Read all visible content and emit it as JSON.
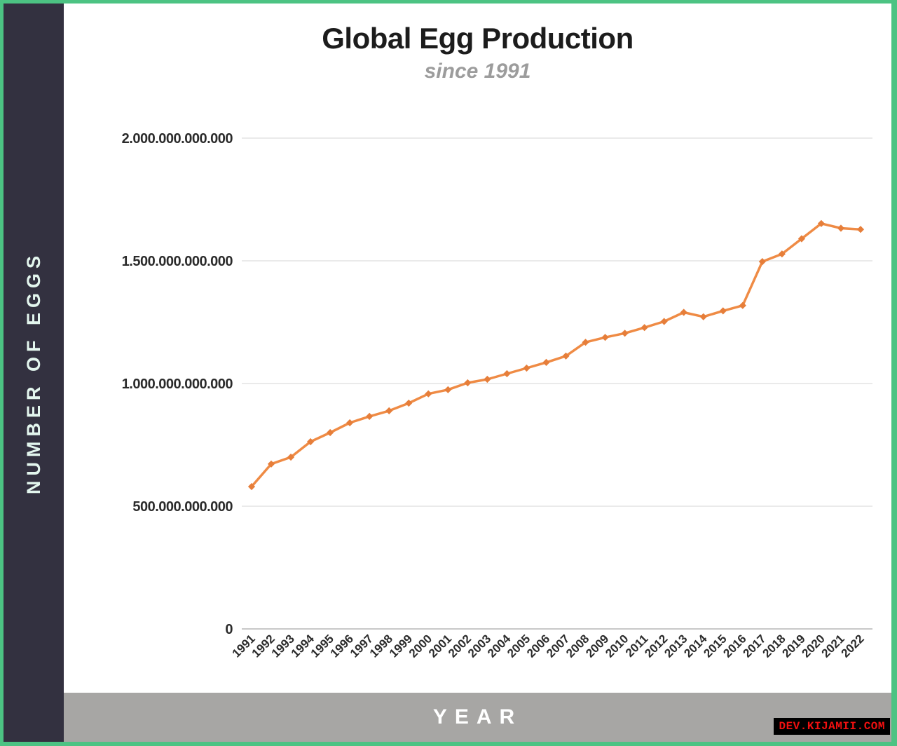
{
  "page": {
    "watermark": "DEV.KIJAMII.COM"
  },
  "theme": {
    "border_green": "#4cc383",
    "sidebar_bg": "#333140",
    "sidebar_text": "#e3f6ee",
    "footer_bar_bg": "#a7a6a4",
    "footer_text": "#ffffff",
    "line_color": "#ef8b45",
    "marker_color": "#e67e3a",
    "gridline_color": "#e3e3e3",
    "axis_zero_line_color": "#c8c8c8",
    "title_color": "#1c1c1c",
    "subtitle_color": "#9c9c9c",
    "watermark_bg": "#000000",
    "watermark_text_color": "#f01010"
  },
  "chart_data": {
    "type": "line",
    "title": "Global Egg Production",
    "subtitle": "since 1991",
    "xlabel": "YEAR",
    "ylabel": "NUMBER OF EGGS",
    "legend": false,
    "grid": true,
    "series_name": "Global egg production",
    "values_unit": "billion eggs",
    "ylim_billions": [
      0,
      2000
    ],
    "yticks_billions": [
      0,
      500,
      1000,
      1500,
      2000
    ],
    "ytick_labels": [
      "0",
      "500.000.000.000",
      "1.000.000.000.000",
      "1.500.000.000.000",
      "2.000.000.000.000"
    ],
    "x": [
      1991,
      1992,
      1993,
      1994,
      1995,
      1996,
      1997,
      1998,
      1999,
      2000,
      2001,
      2002,
      2003,
      2004,
      2005,
      2006,
      2007,
      2008,
      2009,
      2010,
      2011,
      2012,
      2013,
      2014,
      2015,
      2016,
      2017,
      2018,
      2019,
      2020,
      2021,
      2022
    ],
    "values_billions": [
      580,
      672,
      700,
      763,
      800,
      840,
      866,
      889,
      920,
      958,
      975,
      1003,
      1017,
      1040,
      1063,
      1086,
      1112,
      1168,
      1188,
      1205,
      1228,
      1253,
      1290,
      1272,
      1296,
      1318,
      1497,
      1528,
      1590,
      1652,
      1633,
      1628
    ]
  }
}
